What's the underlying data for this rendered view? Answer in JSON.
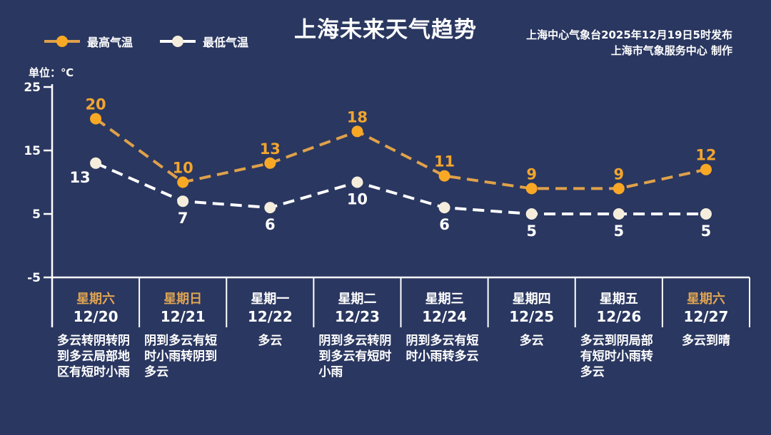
{
  "title": "上海未来天气趋势",
  "source_line1": "上海中心气象台2025年12月19日5时发布",
  "source_line2": "上海市气象服务中心  制作",
  "unit_label": "单位：℃",
  "legend": {
    "high": "最高气温",
    "low": "最低气温"
  },
  "colors": {
    "background": "#2A3760",
    "text": "#FFFFFF",
    "weekend_label": "#DFA452",
    "axis": "#FFFFFF"
  },
  "chart_data": {
    "type": "line",
    "title": "上海未来天气趋势",
    "ylabel": "单位：℃",
    "ylim": [
      -5,
      25
    ],
    "yticks": [
      25,
      15,
      5,
      -5
    ],
    "grid": false,
    "legend_position": "top-left",
    "line_style": "dashed",
    "categories": [
      "12/20",
      "12/21",
      "12/22",
      "12/23",
      "12/24",
      "12/25",
      "12/26",
      "12/27"
    ],
    "series": [
      {
        "id": "high-temp",
        "name": "最高气温",
        "values": [
          20,
          10,
          13,
          18,
          11,
          9,
          9,
          12
        ],
        "line_color": "#DFA14A",
        "marker_color": "#F9A825",
        "label_color": "#F2A52E"
      },
      {
        "id": "low-temp",
        "name": "最低气温",
        "values": [
          13,
          7,
          6,
          10,
          6,
          5,
          5,
          5
        ],
        "line_color": "#FFFFFF",
        "marker_color": "#F5EDDB",
        "label_color": "#FFFFFF"
      }
    ]
  },
  "days": [
    {
      "weekday": "星期六",
      "date": "12/20",
      "weather": "多云转阴转阴到多云局部地区有短时小雨",
      "weekend": true
    },
    {
      "weekday": "星期日",
      "date": "12/21",
      "weather": "阴到多云有短时小雨转阴到多云",
      "weekend": true
    },
    {
      "weekday": "星期一",
      "date": "12/22",
      "weather": "多云",
      "weekend": false
    },
    {
      "weekday": "星期二",
      "date": "12/23",
      "weather": "阴到多云转阴到多云有短时小雨",
      "weekend": false
    },
    {
      "weekday": "星期三",
      "date": "12/24",
      "weather": "阴到多云有短时小雨转多云",
      "weekend": false
    },
    {
      "weekday": "星期四",
      "date": "12/25",
      "weather": "多云",
      "weekend": false
    },
    {
      "weekday": "星期五",
      "date": "12/26",
      "weather": "多云到阴局部有短时小雨转多云",
      "weekend": false
    },
    {
      "weekday": "星期六",
      "date": "12/27",
      "weather": "多云到晴",
      "weekend": true
    }
  ]
}
